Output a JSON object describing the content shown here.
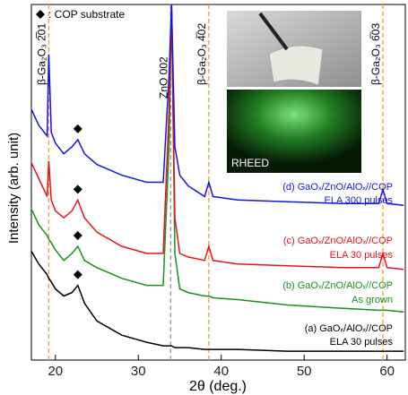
{
  "chart_data": {
    "type": "line",
    "x_label": "2θ (deg.)",
    "y_label": "Intensity (arb. unit)",
    "xlim": [
      17.1,
      62.2
    ],
    "ylim": [
      0,
      100
    ],
    "xticks": [
      20,
      30,
      40,
      50,
      60
    ],
    "x": [
      17,
      18,
      19,
      19.2,
      19.5,
      20,
      21,
      22,
      22.7,
      23.5,
      25,
      28,
      31,
      33,
      33.7,
      34,
      34.4,
      35,
      36,
      38,
      38.5,
      39,
      42,
      48,
      55,
      59,
      59.5,
      60,
      62
    ],
    "series": [
      {
        "name": "(a) GaOₓ/AlOₓ//COP",
        "sublabel": "ELA 30 pulses",
        "color": "#000000",
        "values": [
          31,
          27,
          24,
          23,
          22,
          20,
          18,
          19,
          21,
          16,
          11,
          7,
          5,
          4,
          4,
          4,
          3.5,
          3.5,
          3.5,
          3,
          3,
          3,
          3,
          2.5,
          2.5,
          2.5,
          2.5,
          2.5,
          2.5
        ]
      },
      {
        "name": "(b) GaOₓ/ZnO/AlOₓ//COP",
        "sublabel": "As grown",
        "color": "#1a8f1a",
        "values": [
          43,
          38,
          35,
          34,
          33,
          31,
          28,
          30,
          32,
          28,
          26,
          23,
          21,
          21,
          60,
          100,
          30,
          20,
          19,
          18,
          18,
          17.5,
          17,
          15.5,
          14.5,
          14,
          14,
          14,
          13.5
        ]
      },
      {
        "name": "(c) GaOₓ/ZnO/AlOₓ//COP",
        "sublabel": "ELA 30 pulses",
        "color": "#e8121a",
        "values": [
          56,
          51,
          46,
          56,
          45,
          42,
          40,
          42,
          45,
          40,
          36,
          32,
          30,
          30,
          70,
          100,
          40,
          30,
          29,
          28,
          32,
          28,
          27,
          26.5,
          26,
          26,
          30,
          26,
          25.5
        ]
      },
      {
        "name": "(d) GaOₓ/ZnO/AlOₓ//COP",
        "sublabel": "ELA 300 pulses",
        "color": "#1414e6",
        "values": [
          71,
          66,
          63,
          86,
          64,
          61,
          58,
          60,
          62,
          58,
          55,
          52,
          50,
          50,
          80,
          100,
          60,
          52,
          49,
          46,
          50,
          46,
          45,
          44.5,
          44,
          44,
          48,
          44,
          43.5
        ]
      }
    ],
    "reference_lines": [
      {
        "x": 19.2,
        "label": "β-Ga₂O₃ 2̅01",
        "color": "#f0a030"
      },
      {
        "x": 33.9,
        "label": "ZnO 002",
        "color": "#999999"
      },
      {
        "x": 38.5,
        "label": "β-Ga₂O₃ 4̅02",
        "color": "#f0a030"
      },
      {
        "x": 59.5,
        "label": "β-Ga₂O₃ 6̅03",
        "color": "#f0a030"
      }
    ],
    "substrate_marker": {
      "label": ": COP substrate",
      "x": 22.7
    },
    "inset": {
      "label": "RHEED"
    }
  }
}
